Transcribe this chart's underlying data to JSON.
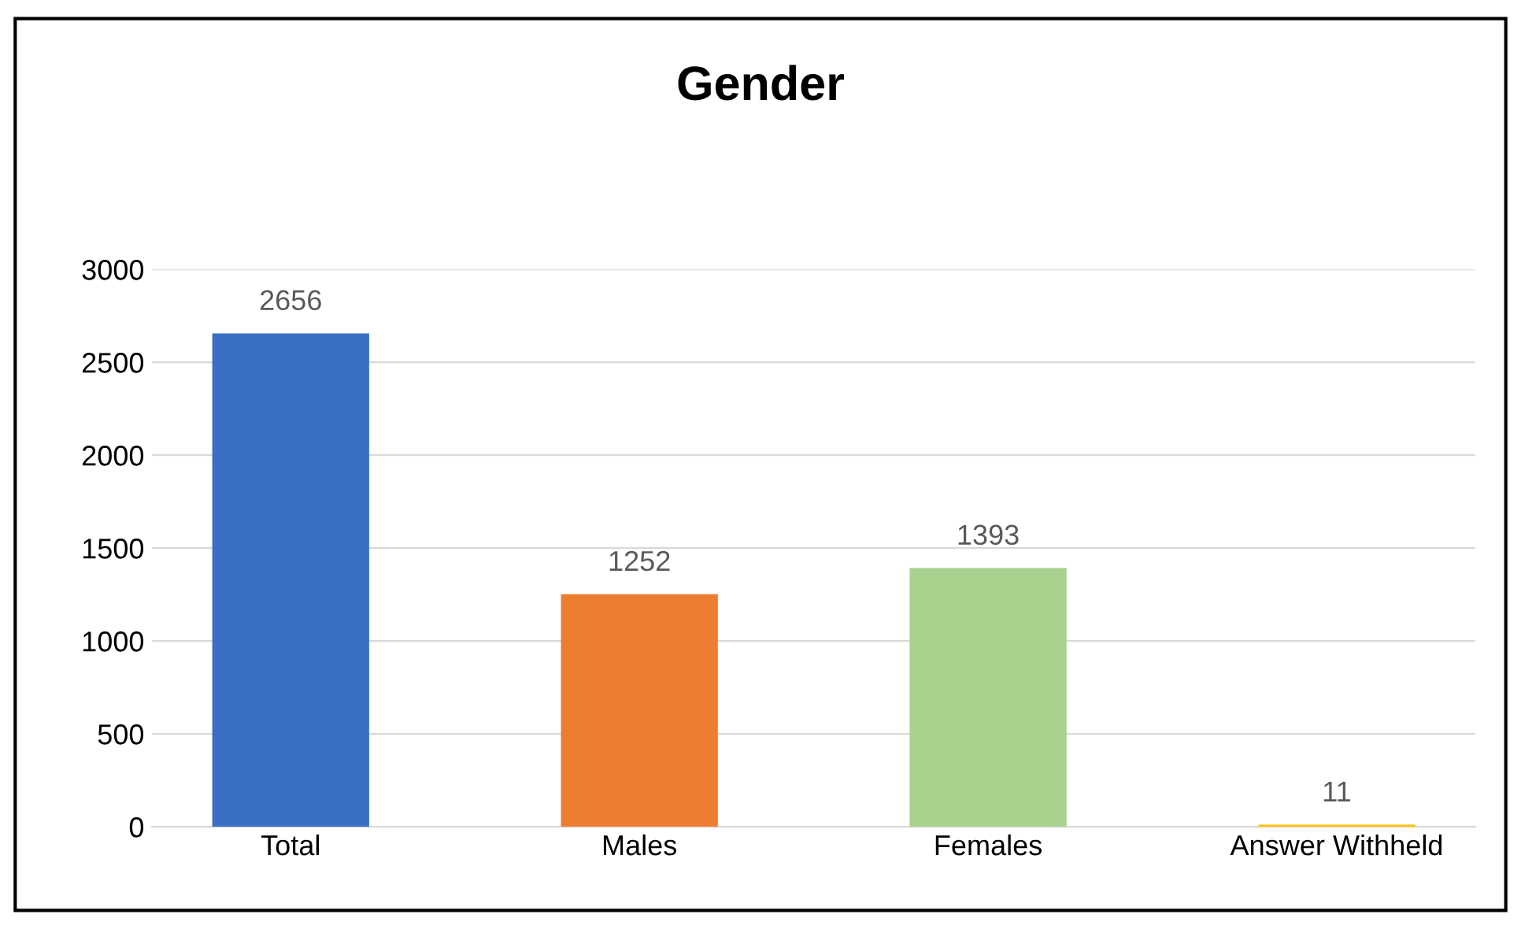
{
  "chart_data": {
    "type": "bar",
    "title": "Gender",
    "categories": [
      "Total",
      "Males",
      "Females",
      "Answer Withheld"
    ],
    "values": [
      2656,
      1252,
      1393,
      11
    ],
    "colors": [
      "#3b6fc6",
      "#ed7d31",
      "#a9d18e",
      "#ffc000"
    ],
    "ylim": [
      0,
      3000
    ],
    "yticks": [
      0,
      500,
      1000,
      1500,
      2000,
      2500,
      3000
    ],
    "grid": "y",
    "data_labels": true,
    "legend": false
  }
}
